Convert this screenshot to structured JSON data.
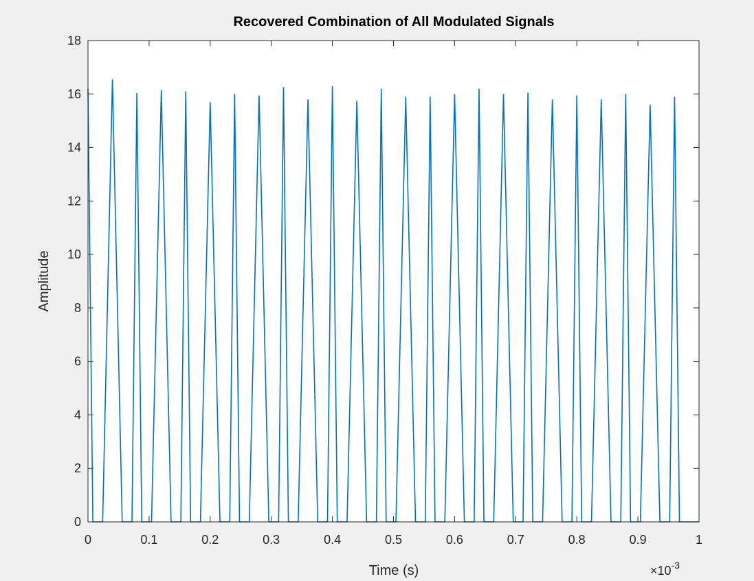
{
  "chart_data": {
    "type": "line",
    "title": "Recovered Combination of All Modulated Signals",
    "xlabel": "Time (s)",
    "ylabel": "Amplitude",
    "x_exponent": {
      "base": "×10",
      "power": "-3"
    },
    "xlim": [
      0,
      1
    ],
    "ylim": [
      0,
      18
    ],
    "xticks": [
      "0",
      "0.1",
      "0.2",
      "0.3",
      "0.4",
      "0.5",
      "0.6",
      "0.7",
      "0.8",
      "0.9",
      "1"
    ],
    "yticks": [
      "0",
      "2",
      "4",
      "6",
      "8",
      "10",
      "12",
      "14",
      "16",
      "18"
    ],
    "grid": false,
    "legend": "none",
    "line_color": "#0072bd",
    "series": [
      {
        "x": [
          0,
          0.008,
          0.024,
          0.04,
          0.056,
          0.072,
          0.08,
          0.088,
          0.104,
          0.12,
          0.136,
          0.152,
          0.16,
          0.168,
          0.184,
          0.2,
          0.216,
          0.232,
          0.24,
          0.248,
          0.264,
          0.28,
          0.296,
          0.312,
          0.32,
          0.328,
          0.344,
          0.36,
          0.376,
          0.392,
          0.4,
          0.408,
          0.424,
          0.44,
          0.456,
          0.472,
          0.48,
          0.488,
          0.504,
          0.52,
          0.536,
          0.552,
          0.56,
          0.568,
          0.584,
          0.6,
          0.616,
          0.632,
          0.64,
          0.648,
          0.664,
          0.68,
          0.696,
          0.712,
          0.72,
          0.728,
          0.744,
          0.76,
          0.776,
          0.792,
          0.8,
          0.808,
          0.824,
          0.84,
          0.856,
          0.872,
          0.88,
          0.888,
          0.904,
          0.92,
          0.936,
          0.952,
          0.96,
          0.968,
          0.984,
          1.0
        ],
        "y": [
          16.2,
          0,
          0,
          16.55,
          0,
          0,
          16.05,
          0,
          0,
          16.15,
          0,
          0,
          16.1,
          0,
          0,
          15.7,
          0,
          0,
          16.0,
          0,
          0,
          15.95,
          0,
          0,
          16.25,
          0,
          0,
          15.8,
          0,
          0,
          16.3,
          0,
          0,
          15.75,
          0,
          0,
          16.2,
          0,
          0,
          15.9,
          0,
          0,
          15.9,
          0,
          0,
          16.0,
          0,
          0,
          16.2,
          0,
          0,
          16.0,
          0,
          0,
          16.05,
          0,
          0,
          15.8,
          0,
          0,
          15.95,
          0,
          0,
          15.8,
          0,
          0,
          16.0,
          0,
          0,
          15.6,
          0,
          0,
          15.9,
          0,
          0,
          0
        ]
      }
    ]
  }
}
